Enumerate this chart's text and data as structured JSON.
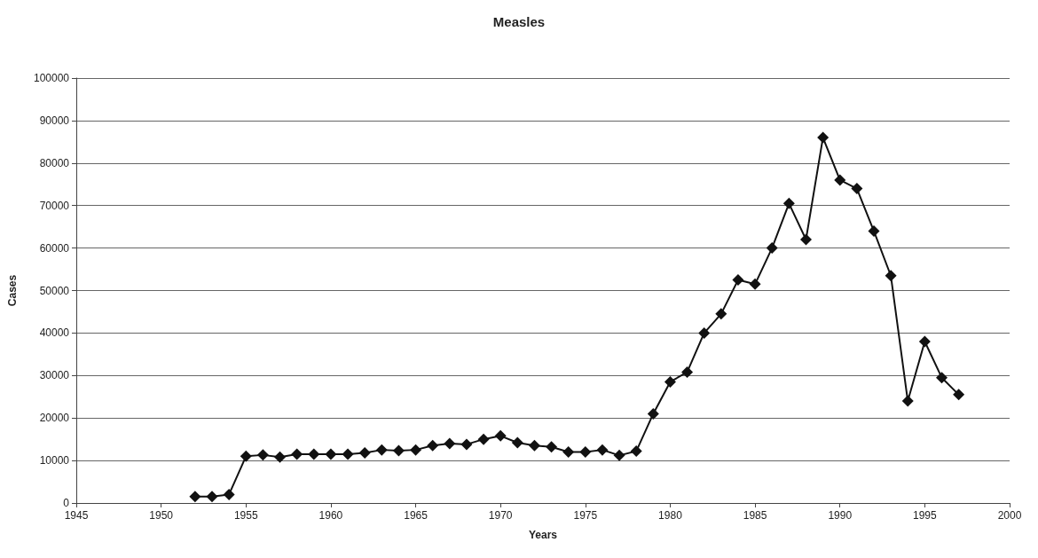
{
  "chart_data": {
    "type": "line",
    "title": "Measles",
    "xlabel": "Years",
    "ylabel": "Cases",
    "x": [
      1952,
      1953,
      1954,
      1955,
      1956,
      1957,
      1958,
      1959,
      1960,
      1961,
      1962,
      1963,
      1964,
      1965,
      1966,
      1967,
      1968,
      1969,
      1970,
      1971,
      1972,
      1973,
      1974,
      1975,
      1976,
      1977,
      1978,
      1979,
      1980,
      1981,
      1982,
      1983,
      1984,
      1985,
      1986,
      1987,
      1988,
      1989,
      1990,
      1991,
      1992,
      1993,
      1994,
      1995,
      1996,
      1997
    ],
    "series": [
      {
        "color": "#111111",
        "values": [
          1500,
          1500,
          2000,
          11000,
          11300,
          10800,
          11500,
          11500,
          11500,
          11500,
          11800,
          12500,
          12300,
          12500,
          13500,
          14000,
          13800,
          15000,
          15800,
          14200,
          13500,
          13200,
          12000,
          12000,
          12500,
          11200,
          12200,
          21000,
          28500,
          30800,
          40000,
          44500,
          52500,
          51500,
          60000,
          70500,
          62000,
          86000,
          76000,
          74000,
          64000,
          53500,
          24000,
          38000,
          29500,
          25500
        ]
      }
    ],
    "xlim": [
      1945,
      2000
    ],
    "xticks": [
      1945,
      1950,
      1955,
      1960,
      1965,
      1970,
      1975,
      1980,
      1985,
      1990,
      1995,
      2000
    ],
    "ylim": [
      0,
      100000
    ],
    "yticks": [
      0,
      10000,
      20000,
      30000,
      40000,
      50000,
      60000,
      70000,
      80000,
      90000,
      100000
    ],
    "grid": "y",
    "marker": "diamond",
    "line_style": "solid"
  }
}
